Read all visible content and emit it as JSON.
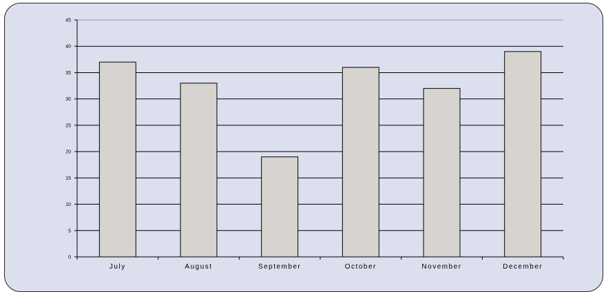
{
  "chart_data": {
    "type": "bar",
    "title": "",
    "xlabel": "",
    "ylabel": "",
    "categories": [
      "July",
      "August",
      "September",
      "October",
      "November",
      "December"
    ],
    "values": [
      37,
      33,
      19,
      36,
      32,
      39
    ],
    "ylim": [
      0,
      45
    ],
    "yticks": [
      "0",
      "5",
      "10",
      "15",
      "20",
      "25",
      "30",
      "35",
      "40",
      "45"
    ],
    "grid": true,
    "legend": "none",
    "colors": {
      "background": "#dcdfee",
      "bar_fill": "#d7d3cf",
      "bar_stroke": "#000000",
      "gridline": "#000000",
      "frame": "#222222"
    }
  }
}
